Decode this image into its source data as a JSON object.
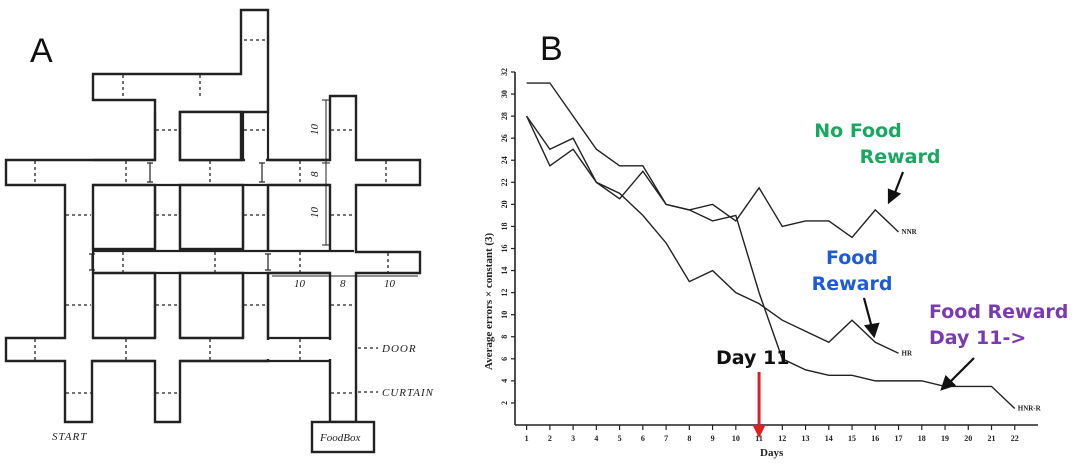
{
  "panel_a": {
    "letter": "A",
    "labels": {
      "door": "DOOR",
      "curtain": "CURTAIN",
      "start": "START",
      "foodbox": "FoodBox"
    },
    "dims": {
      "d1": "10",
      "d2": "10",
      "d3": "10",
      "d4": "8",
      "d5": "10",
      "d6": "8"
    }
  },
  "panel_b": {
    "letter": "B"
  },
  "chart_data": {
    "type": "line",
    "xlabel": "Days",
    "ylabel": "Average errors × constant (3)",
    "xlim": [
      0.5,
      23
    ],
    "ylim": [
      0,
      32
    ],
    "x_ticks": [
      1,
      2,
      3,
      4,
      5,
      6,
      7,
      8,
      9,
      10,
      11,
      12,
      13,
      14,
      15,
      16,
      17,
      18,
      19,
      20,
      21,
      22
    ],
    "y_ticks": [
      2,
      4,
      6,
      8,
      10,
      12,
      14,
      16,
      18,
      20,
      22,
      24,
      26,
      28,
      30,
      32
    ],
    "series": [
      {
        "name": "No Food Reward",
        "end_label": "NNR",
        "x": [
          1,
          2,
          3,
          4,
          5,
          6,
          7,
          8,
          9,
          10,
          11,
          12,
          13,
          14,
          15,
          16,
          17
        ],
        "y": [
          28,
          23.5,
          25,
          22,
          20.5,
          23,
          20,
          19.5,
          20,
          18.5,
          21.5,
          18,
          18.5,
          18.5,
          17,
          19.5,
          17.5
        ]
      },
      {
        "name": "Food Reward",
        "end_label": "HR",
        "x": [
          1,
          2,
          3,
          4,
          5,
          6,
          7,
          8,
          9,
          10,
          11,
          12,
          13,
          14,
          15,
          16,
          17
        ],
        "y": [
          28,
          25,
          26,
          22,
          21,
          19,
          16.5,
          13,
          14,
          12,
          11,
          9.5,
          8.5,
          7.5,
          9.5,
          7.5,
          6.5
        ]
      },
      {
        "name": "Food Reward Day 11->",
        "end_label": "HNR-R",
        "x": [
          1,
          2,
          3,
          4,
          5,
          6,
          7,
          8,
          9,
          10,
          11,
          12,
          13,
          14,
          15,
          16,
          17,
          18,
          19,
          20,
          21,
          22
        ],
        "y": [
          31,
          31,
          28,
          25,
          23.5,
          23.5,
          20,
          19.5,
          18.5,
          19,
          12,
          6,
          5,
          4.5,
          4.5,
          4,
          4,
          4,
          3.5,
          3.5,
          3.5,
          1.5
        ]
      }
    ],
    "annotations": [
      {
        "text_lines": [
          "No Food",
          "Reward"
        ],
        "color": "#18a860"
      },
      {
        "text_lines": [
          "Food",
          "Reward"
        ],
        "color": "#1f5bd6"
      },
      {
        "text_lines": [
          "Food Reward",
          "Day 11->"
        ],
        "color": "#7a3bb0"
      },
      {
        "text_lines": [
          "Day 11"
        ],
        "color": "#111111"
      }
    ],
    "marker": {
      "x": 11,
      "color": "#e02020"
    }
  }
}
